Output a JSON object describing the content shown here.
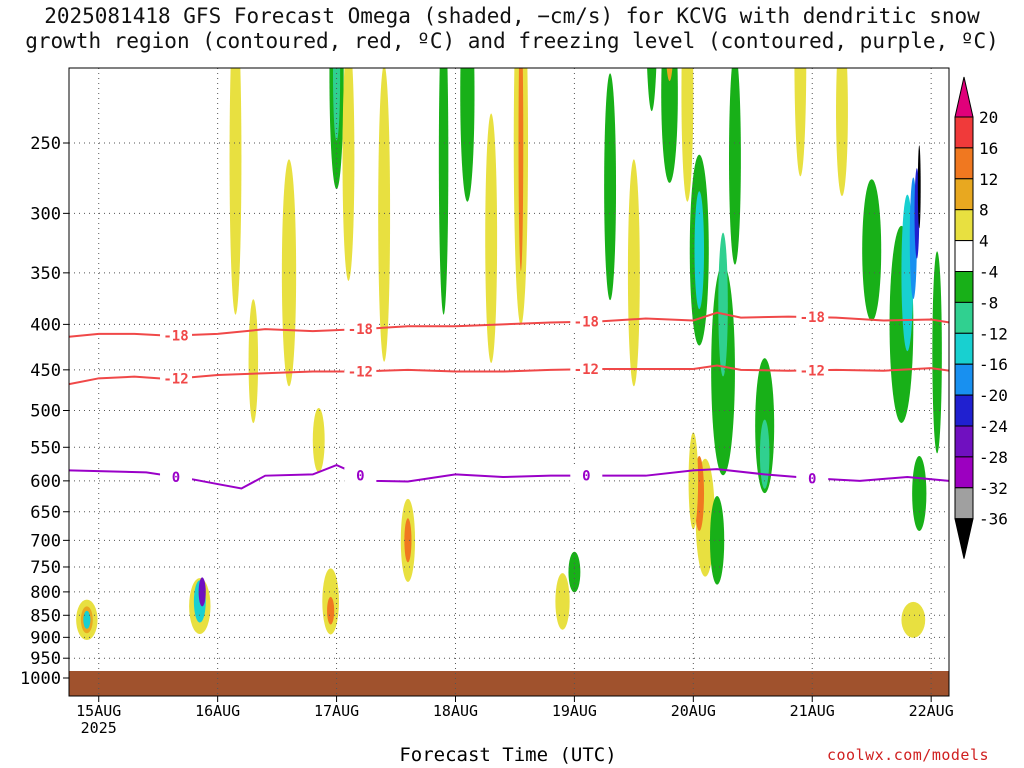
{
  "title": "2025081418 GFS Forecast Omega (shaded, −cm/s) for KCVG with dendritic snow growth region (contoured, red, ºC) and freezing level (contoured, purple, ºC)",
  "xlabel": "Forecast Time (UTC)",
  "credit": "coolwx.com/models",
  "chart_data": {
    "type": "heatmap",
    "title": "2025081418 GFS Forecast Omega (shaded, −cm/s) for KCVG with dendritic snow growth region (contoured, red, ºC) and freezing level (contoured, purple, ºC)",
    "xlabel": "Forecast Time (UTC)",
    "ylabel": "",
    "x_ticks": [
      "15AUG",
      "16AUG",
      "17AUG",
      "18AUG",
      "19AUG",
      "20AUG",
      "21AUG",
      "22AUG"
    ],
    "x_sublabel": "2025",
    "y_ticks": [
      250,
      300,
      350,
      400,
      450,
      500,
      550,
      600,
      650,
      700,
      750,
      800,
      850,
      900,
      950,
      1000
    ],
    "ylim": [
      1000,
      200
    ],
    "xlim": [
      14.75,
      22.15
    ],
    "grid": true,
    "colorbar": {
      "levels": [
        20,
        16,
        12,
        8,
        4,
        -4,
        -8,
        -12,
        -16,
        -20,
        -24,
        -28,
        -32,
        -36
      ],
      "colors": [
        "#e0007a",
        "#f03a3a",
        "#f07820",
        "#e8a820",
        "#e8e040",
        "#ffffff",
        "#18b018",
        "#30d090",
        "#18d0d0",
        "#1890f0",
        "#2020d0",
        "#7010c0",
        "#9c00c0",
        "#a0a0a0",
        "#000000"
      ]
    },
    "contours": [
      {
        "name": "-18",
        "color": "#f04848",
        "x": [
          14.75,
          15.0,
          15.3,
          15.6,
          16.0,
          16.4,
          16.8,
          17.2,
          17.6,
          18.0,
          18.4,
          18.8,
          19.2,
          19.6,
          20.0,
          20.2,
          20.4,
          20.8,
          21.2,
          21.6,
          22.0,
          22.15
        ],
        "y": [
          413,
          410,
          410,
          412,
          410,
          405,
          407,
          405,
          402,
          402,
          400,
          398,
          397,
          394,
          396,
          388,
          393,
          392,
          393,
          396,
          395,
          398
        ]
      },
      {
        "name": "-12",
        "color": "#f04848",
        "x": [
          14.75,
          15.0,
          15.3,
          15.6,
          16.0,
          16.4,
          16.8,
          17.2,
          17.6,
          18.0,
          18.4,
          18.8,
          19.2,
          19.6,
          20.0,
          20.2,
          20.4,
          20.8,
          21.2,
          21.6,
          22.0,
          22.15
        ],
        "y": [
          467,
          460,
          458,
          461,
          456,
          454,
          452,
          452,
          450,
          452,
          452,
          450,
          449,
          449,
          449,
          445,
          450,
          451,
          450,
          451,
          448,
          451
        ]
      },
      {
        "name": "0",
        "color": "#9a00c8",
        "x": [
          14.75,
          15.0,
          15.4,
          15.8,
          16.0,
          16.2,
          16.4,
          16.8,
          17.0,
          17.3,
          17.6,
          18.0,
          18.4,
          18.8,
          19.2,
          19.6,
          20.0,
          20.2,
          20.6,
          21.0,
          21.4,
          21.8,
          22.15
        ],
        "y": [
          584,
          585,
          587,
          598,
          605,
          612,
          592,
          590,
          576,
          600,
          601,
          590,
          594,
          592,
          592,
          592,
          584,
          582,
          590,
          596,
          600,
          594,
          600
        ]
      }
    ]
  }
}
